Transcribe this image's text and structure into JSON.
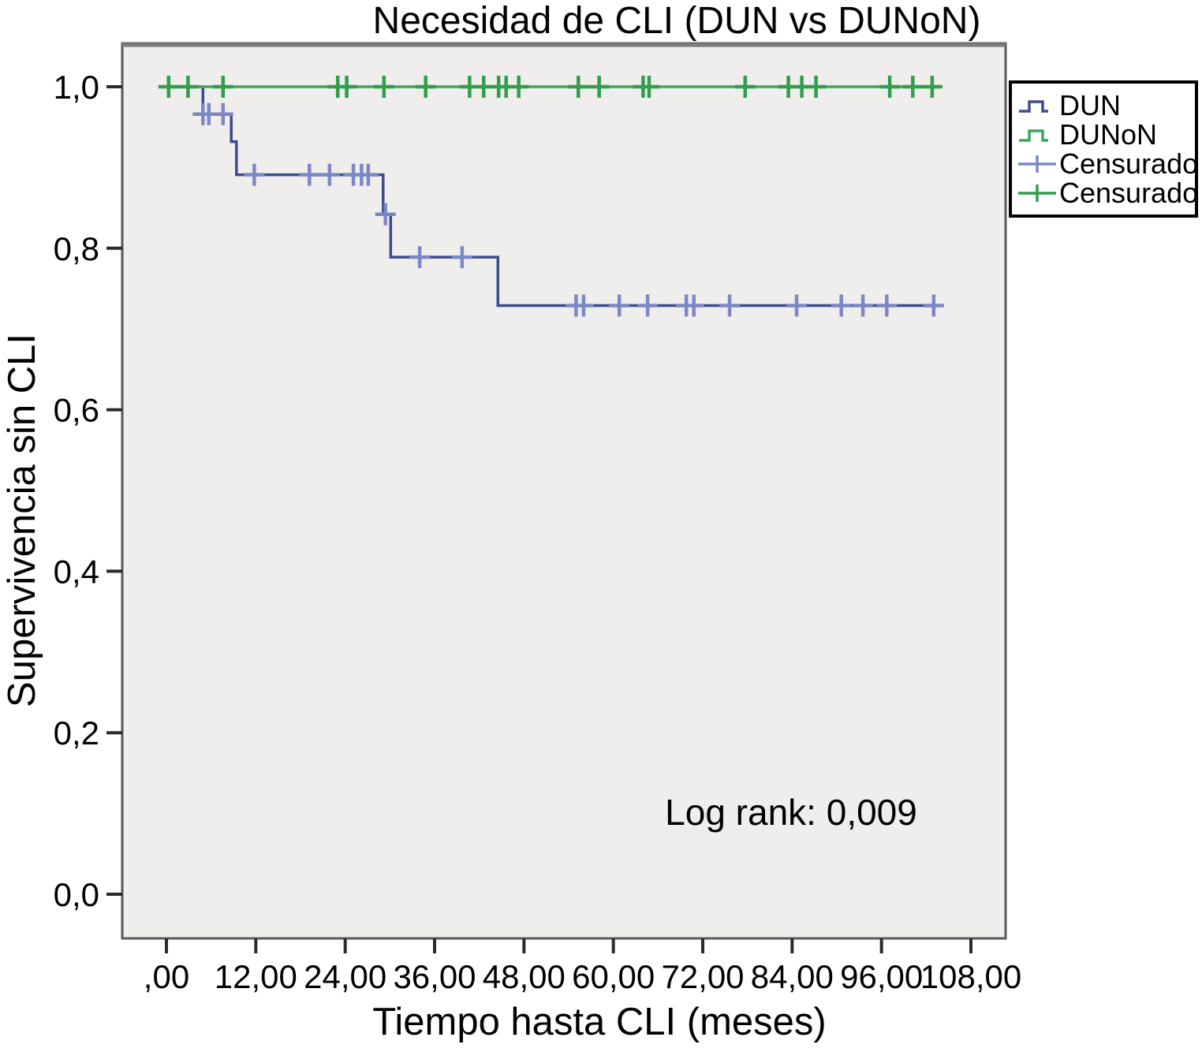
{
  "chart_data": {
    "type": "line",
    "subtype": "kaplan-meier-step",
    "title": "Necesidad de CLI (DUN vs DUNoN)",
    "xlabel": "Tiempo hasta CLI (meses)",
    "ylabel": "Supervivencia sin CLI",
    "annotation": "Log rank: 0,009",
    "grid": false,
    "legend_position": "top-right",
    "plot_background": "#efeeec",
    "x_axis": {
      "range": [
        0,
        108
      ],
      "ticks": [
        0,
        12,
        24,
        36,
        48,
        60,
        72,
        84,
        96,
        108
      ],
      "tick_labels": [
        ",00",
        "12,00",
        "24,00",
        "36,00",
        "48,00",
        "60,00",
        "72,00",
        "84,00",
        "96,00",
        "108,00"
      ]
    },
    "y_axis": {
      "range": [
        0,
        1
      ],
      "ticks": [
        0,
        0.2,
        0.4,
        0.6,
        0.8,
        1.0
      ],
      "tick_labels": [
        "0,0",
        "0,2",
        "0,4",
        "0,6",
        "0,8",
        "1,0"
      ]
    },
    "legend": [
      {
        "label": "DUN",
        "series": "DUN",
        "symbol": "step-line"
      },
      {
        "label": "DUNoN",
        "series": "DUNoN",
        "symbol": "step-line"
      },
      {
        "label": "Censurado",
        "series": "DUN",
        "symbol": "plus"
      },
      {
        "label": "Censurado",
        "series": "DUNoN",
        "symbol": "plus"
      }
    ],
    "series": [
      {
        "name": "DUN",
        "color": "#3c4b90",
        "censor_color": "#7c88c6",
        "points": [
          [
            0,
            1.0
          ],
          [
            4.9,
            1.0
          ],
          [
            4.9,
            0.966
          ],
          [
            8.7,
            0.966
          ],
          [
            8.7,
            0.932
          ],
          [
            9.4,
            0.932
          ],
          [
            9.4,
            0.891
          ],
          [
            29.1,
            0.891
          ],
          [
            29.1,
            0.842
          ],
          [
            30.1,
            0.842
          ],
          [
            30.1,
            0.789
          ],
          [
            44.5,
            0.789
          ],
          [
            44.5,
            0.729
          ],
          [
            103.3,
            0.729
          ]
        ],
        "censor_times": [
          4.9,
          5.7,
          7.6,
          11.8,
          19.2,
          21.9,
          25.1,
          26.2,
          27.1,
          29.4,
          34.0,
          39.7,
          55.0,
          56.0,
          60.8,
          64.6,
          69.8,
          70.8,
          75.6,
          84.6,
          90.6,
          93.5,
          96.7,
          103.0
        ]
      },
      {
        "name": "DUNoN",
        "color": "#3aa75a",
        "censor_color": "#2f9e4d",
        "points": [
          [
            0,
            1.0
          ],
          [
            103.7,
            1.0
          ]
        ],
        "censor_times": [
          0.3,
          2.9,
          7.6,
          23.0,
          24.2,
          29.2,
          34.8,
          40.7,
          42.6,
          44.6,
          45.6,
          47.3,
          55.3,
          58.1,
          64.0,
          64.8,
          77.7,
          83.5,
          85.3,
          87.2,
          97.1,
          100.2,
          102.8
        ]
      }
    ]
  }
}
